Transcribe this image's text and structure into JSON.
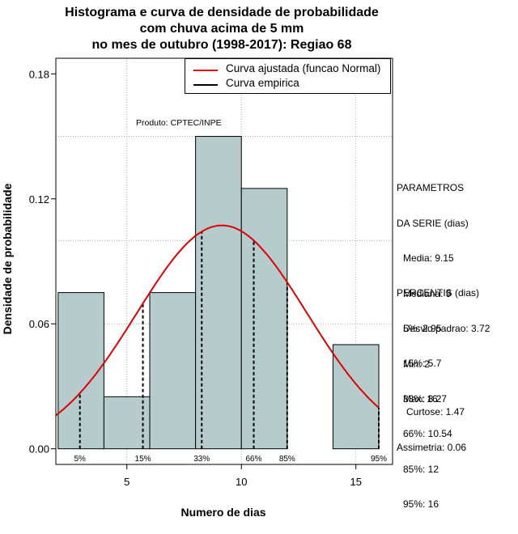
{
  "titles": [
    "Histograma e curva de densidade de probabilidade",
    "com chuva acima de 5 mm",
    "no mes de outubro (1998-2017): Regiao 68"
  ],
  "axis": {
    "xlabel": "Numero de dias",
    "ylabel": "Densidade de probabilidade"
  },
  "legend": {
    "fitted": "Curva ajustada (funcao Normal)",
    "empirical": "Curva empirica"
  },
  "product_label": "Produto: CPTEC/INPE",
  "parameters": {
    "heading": [
      "PARAMETROS",
      "DA SERIE (dias)"
    ],
    "lines": [
      "Media: 9.15",
      "Mediana: 9",
      "Desvio padrao: 3.72",
      "Min: 2",
      "Max: 16"
    ]
  },
  "percentiles": {
    "heading": "PERCENTIS (dias)",
    "lines": [
      "5%: 2.95",
      "15%: 5.7",
      "33%: 8.27",
      "66%: 10.54",
      "85%: 12",
      "95%: 16"
    ]
  },
  "shape_stats": {
    "lines": [
      "Curtose: 1.47",
      "Assimetria: 0.06"
    ]
  },
  "colors": {
    "bar_fill": "#b6cccc",
    "curve": "#e00000",
    "grid": "#aaaaaa"
  },
  "chart_data": {
    "type": "bar",
    "title": "Histograma e curva de densidade de probabilidade com chuva acima de 5 mm no mes de outubro (1998-2017): Regiao 68",
    "xlabel": "Numero de dias",
    "ylabel": "Densidade de probabilidade",
    "xlim": [
      1.9,
      16.6
    ],
    "ylim": [
      -0.0075,
      0.1875
    ],
    "x_ticks": [
      5,
      10,
      15
    ],
    "y_ticks": [
      0.0,
      0.06,
      0.12,
      0.18
    ],
    "y_tick_labels": [
      "0.00",
      "0.06",
      "0.12",
      "0.18"
    ],
    "bins": [
      {
        "x0": 2,
        "x1": 4,
        "density": 0.075
      },
      {
        "x0": 4,
        "x1": 6,
        "density": 0.025
      },
      {
        "x0": 6,
        "x1": 8,
        "density": 0.075
      },
      {
        "x0": 8,
        "x1": 10,
        "density": 0.15
      },
      {
        "x0": 10,
        "x1": 12,
        "density": 0.125
      },
      {
        "x0": 12,
        "x1": 14,
        "density": 0
      },
      {
        "x0": 14,
        "x1": 16,
        "density": 0.05
      }
    ],
    "normal_fit": {
      "mean": 9.15,
      "sd": 3.72
    },
    "percentile_markers": [
      {
        "label": "5%",
        "x": 2.95
      },
      {
        "label": "15%",
        "x": 5.7
      },
      {
        "label": "33%",
        "x": 8.27
      },
      {
        "label": "66%",
        "x": 10.54
      },
      {
        "label": "85%",
        "x": 12
      },
      {
        "label": "95%",
        "x": 16
      }
    ],
    "grid_x": [
      5,
      10,
      15
    ],
    "grid_y": [
      0.06,
      0.1,
      0.15
    ]
  }
}
